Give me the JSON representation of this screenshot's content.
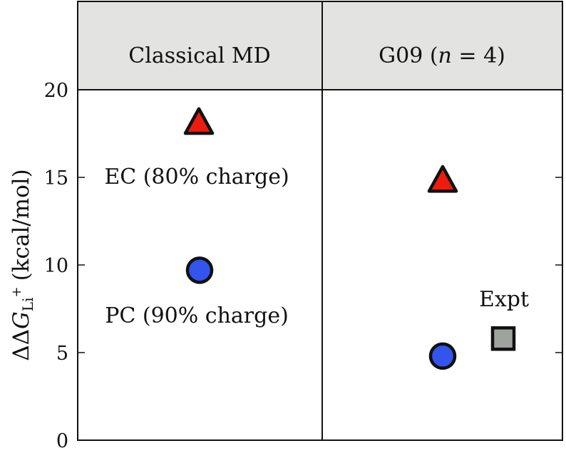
{
  "chart_data": {
    "type": "scatter",
    "ylabel_prefix": "ΔΔ",
    "ylabel_symbol": "G",
    "ylabel_sub": "Li",
    "ylabel_sup": "+",
    "ylabel_units": "(kcal/mol)",
    "ylim": [
      0,
      20
    ],
    "yticks": [
      "0",
      "5",
      "10",
      "15",
      "20"
    ],
    "grid": false,
    "legend": "none",
    "panels": [
      {
        "title": "Classical MD",
        "points": [
          {
            "label": "EC (80% charge)",
            "marker": "triangle",
            "color": "#ee1c0e",
            "y": 18.1
          },
          {
            "label": "PC (90% charge)",
            "marker": "circle",
            "color": "#3355ee",
            "y": 9.7
          }
        ]
      },
      {
        "title_prefix": "G09 (",
        "title_var": "n",
        "title_suffix": " = 4)",
        "points": [
          {
            "marker": "triangle",
            "color": "#ee1c0e",
            "y": 14.8
          },
          {
            "marker": "circle",
            "color": "#3355ee",
            "y": 4.8
          },
          {
            "label": "Expt",
            "marker": "square",
            "color": "#9ea3a0",
            "y": 5.8
          }
        ]
      }
    ]
  }
}
